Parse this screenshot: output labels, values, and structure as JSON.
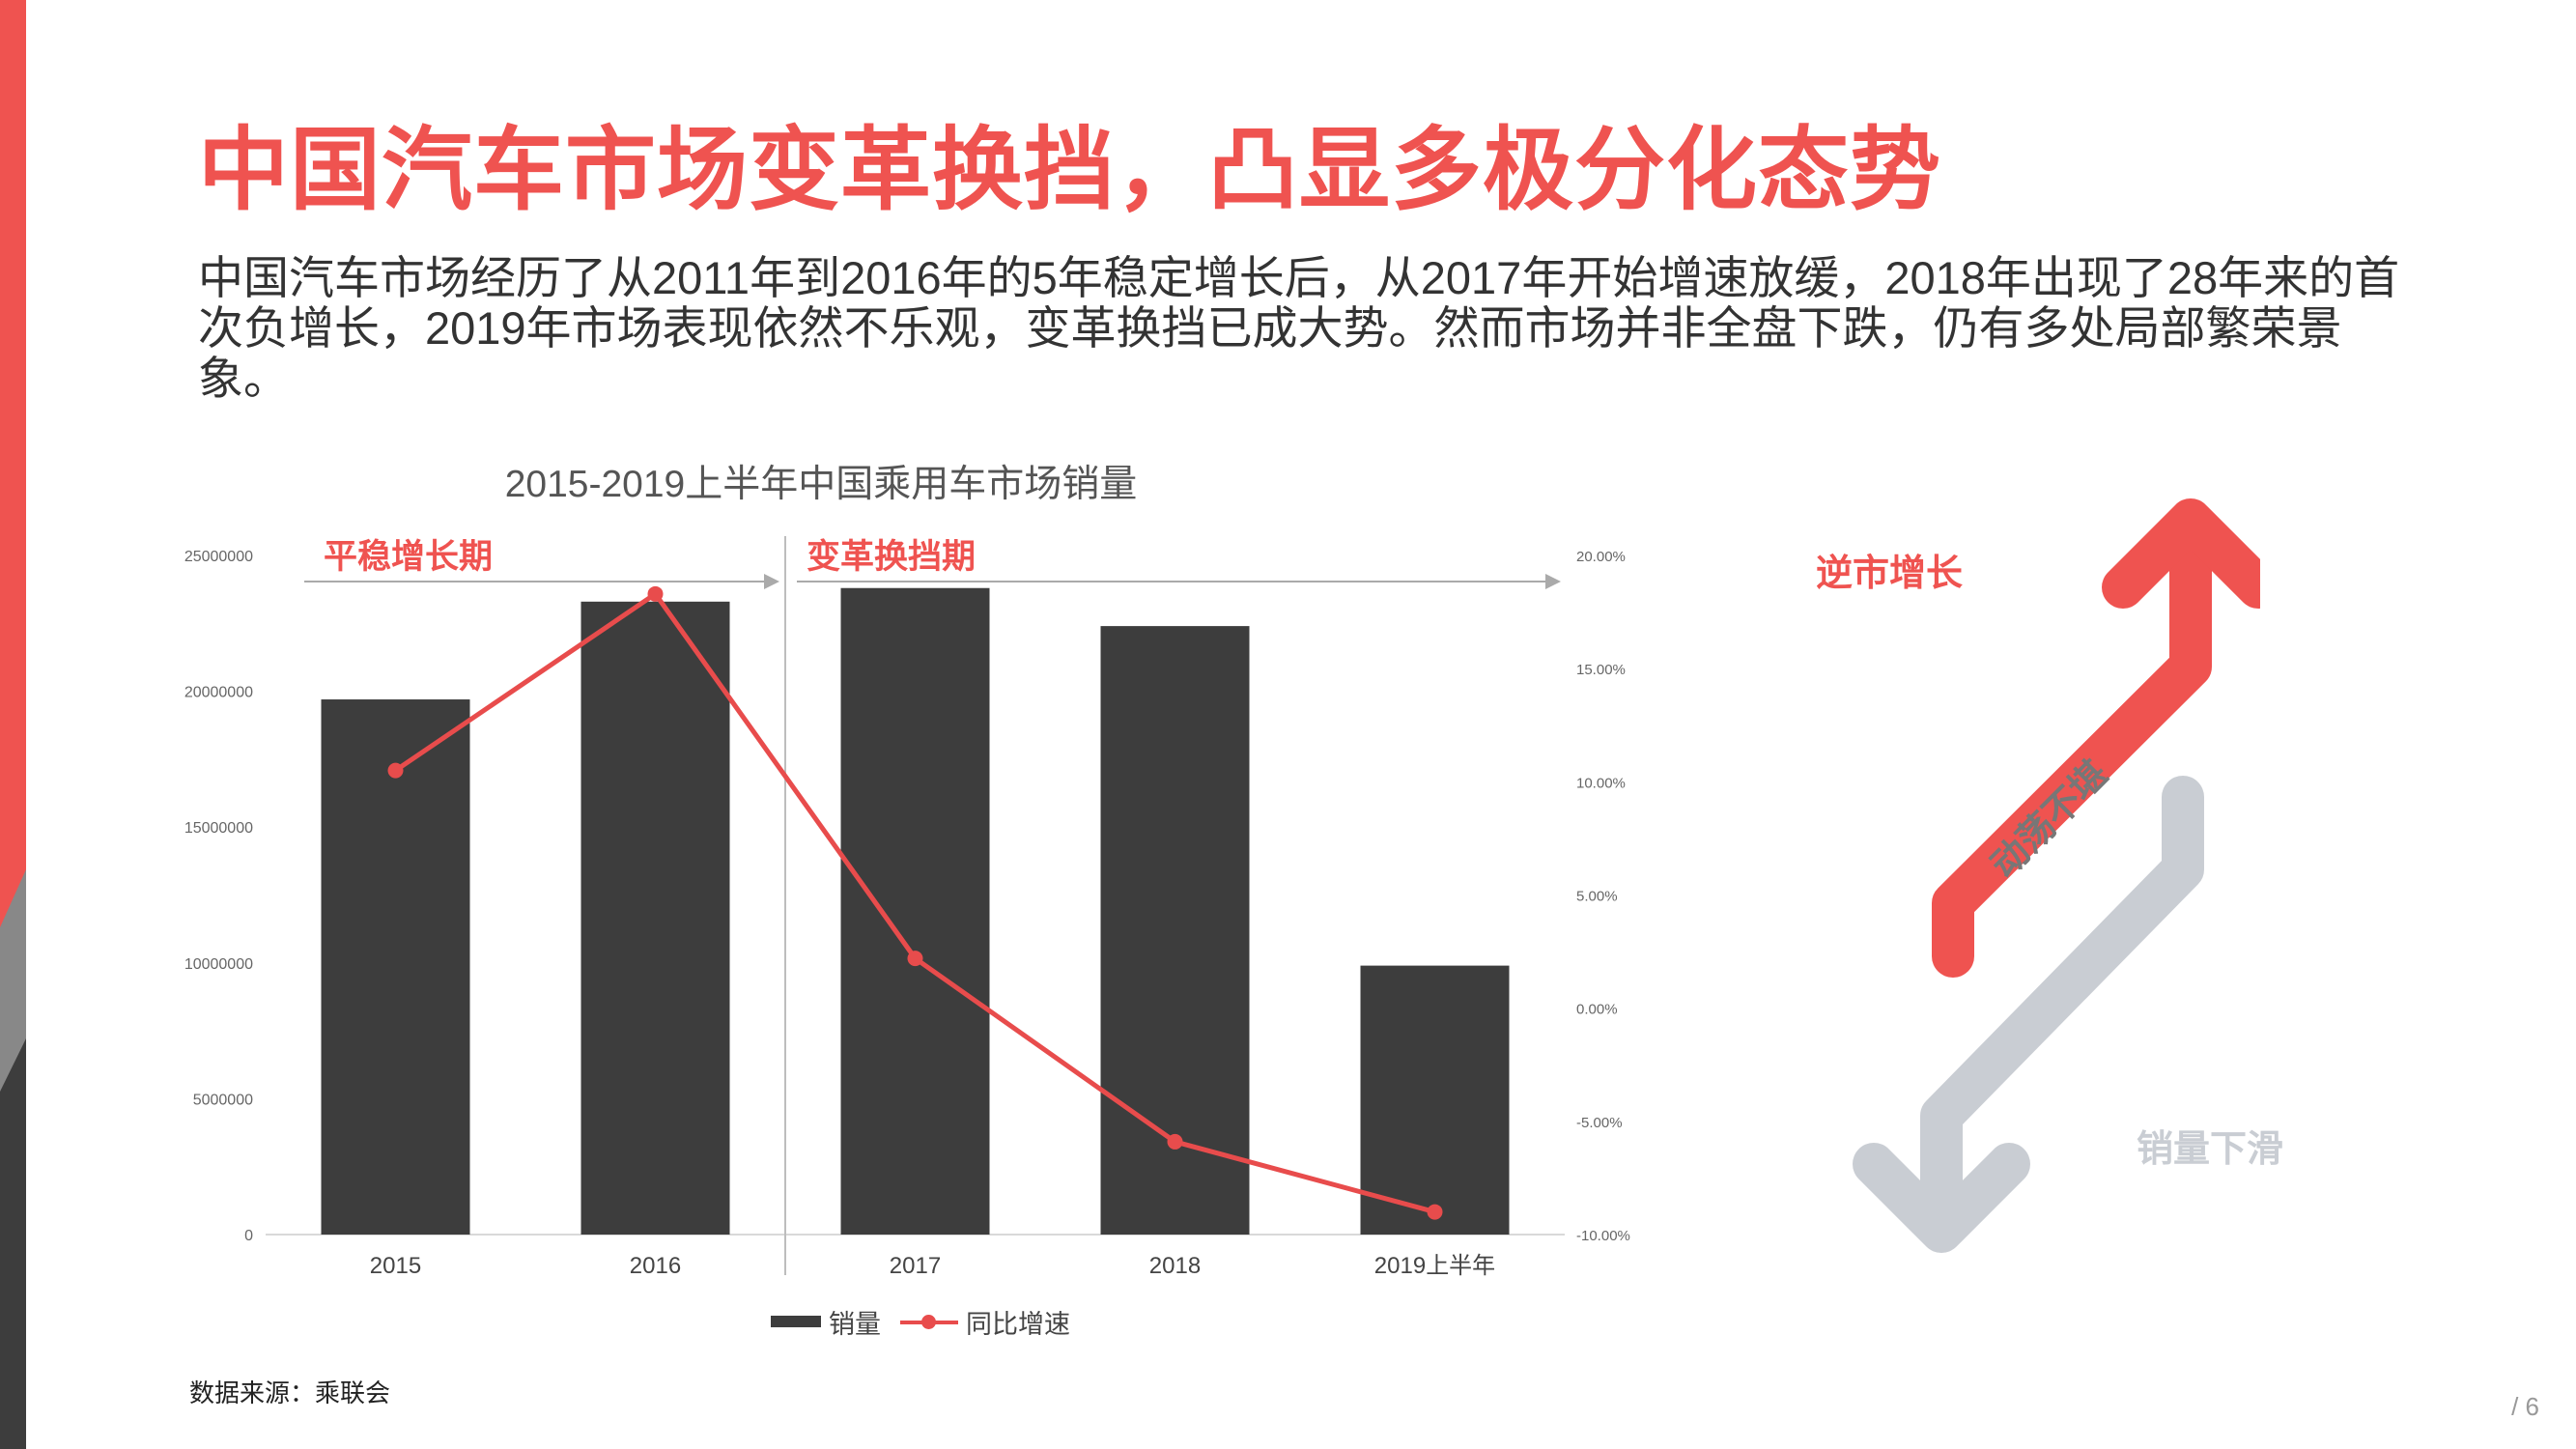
{
  "page": {
    "title": "中国汽车市场变革换挡，凸显多极分化态势",
    "subtitle": "中国汽车市场经历了从2011年到2016年的5年稳定增长后，从2017年开始增速放缓，2018年出现了28年来的首次负增长，2019年市场表现依然不乐观，变革换挡已成大势。然而市场并非全盘下跌，仍有多处局部繁荣景象。",
    "source": "数据来源：乘联会",
    "page_number": "/ 6"
  },
  "colors": {
    "accent_red": "#ef5350",
    "bar_dark": "#3d3d3d",
    "line_red": "#e84c4c",
    "gray_arrow": "#c9cdd3"
  },
  "chart_data": {
    "type": "bar",
    "title": "2015-2019上半年中国乘用车市场销量",
    "categories": [
      "2015",
      "2016",
      "2017",
      "2018",
      "2019上半年"
    ],
    "series": [
      {
        "name": "销量",
        "type": "bar",
        "axis": "left",
        "values": [
          19700000,
          23300000,
          23800000,
          22400000,
          9900000
        ]
      },
      {
        "name": "同比增速",
        "type": "line",
        "axis": "right",
        "values": [
          0.105,
          0.183,
          0.022,
          -0.059,
          -0.09
        ]
      }
    ],
    "y_left": {
      "min": 0,
      "max": 25000000,
      "ticks": [
        "0",
        "5000000",
        "10000000",
        "15000000",
        "20000000",
        "25000000"
      ]
    },
    "y_right": {
      "min": -0.1,
      "max": 0.2,
      "ticks": [
        "-10.00%",
        "-5.00%",
        "0.00%",
        "5.00%",
        "10.00%",
        "15.00%",
        "20.00%"
      ]
    },
    "phases": [
      {
        "label": "平稳增长期",
        "start_index": 0,
        "end_index": 1
      },
      {
        "label": "变革换挡期",
        "start_index": 2,
        "end_index": 4
      }
    ],
    "legend": [
      "销量",
      "同比增速"
    ],
    "legend_position": "bottom"
  },
  "trend": {
    "up_label": "逆市增长",
    "down_label": "销量下滑",
    "middle_label": "动荡不堪"
  }
}
